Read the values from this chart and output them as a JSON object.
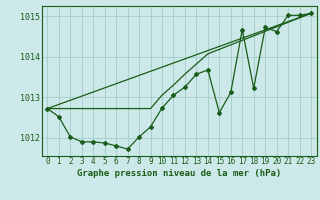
{
  "title": "Graphe pression niveau de la mer (hPa)",
  "background_color": "#cce8e8",
  "grid_color": "#aacfcf",
  "line_color": "#1a5c1a",
  "xlim": [
    -0.5,
    23.5
  ],
  "ylim": [
    1011.55,
    1015.25
  ],
  "yticks": [
    1012,
    1013,
    1014,
    1015
  ],
  "xticks": [
    0,
    1,
    2,
    3,
    4,
    5,
    6,
    7,
    8,
    9,
    10,
    11,
    12,
    13,
    14,
    15,
    16,
    17,
    18,
    19,
    20,
    21,
    22,
    23
  ],
  "series1_x": [
    0,
    1,
    2,
    3,
    4,
    5,
    6,
    7,
    8,
    9,
    10,
    11,
    12,
    13,
    14,
    15,
    16,
    17,
    18,
    19,
    20,
    21,
    22,
    23
  ],
  "series1_y": [
    1012.72,
    1012.52,
    1012.02,
    1011.9,
    1011.9,
    1011.87,
    1011.8,
    1011.72,
    1012.02,
    1012.27,
    1012.73,
    1013.05,
    1013.25,
    1013.57,
    1013.67,
    1012.62,
    1013.12,
    1014.67,
    1013.22,
    1014.72,
    1014.62,
    1015.02,
    1015.02,
    1015.07
  ],
  "series2_x": [
    0,
    9,
    10,
    11,
    12,
    13,
    14,
    23
  ],
  "series2_y": [
    1012.72,
    1012.72,
    1013.05,
    1013.3,
    1013.57,
    1013.82,
    1014.07,
    1015.07
  ],
  "series3_x": [
    0,
    23
  ],
  "series3_y": [
    1012.72,
    1015.07
  ]
}
